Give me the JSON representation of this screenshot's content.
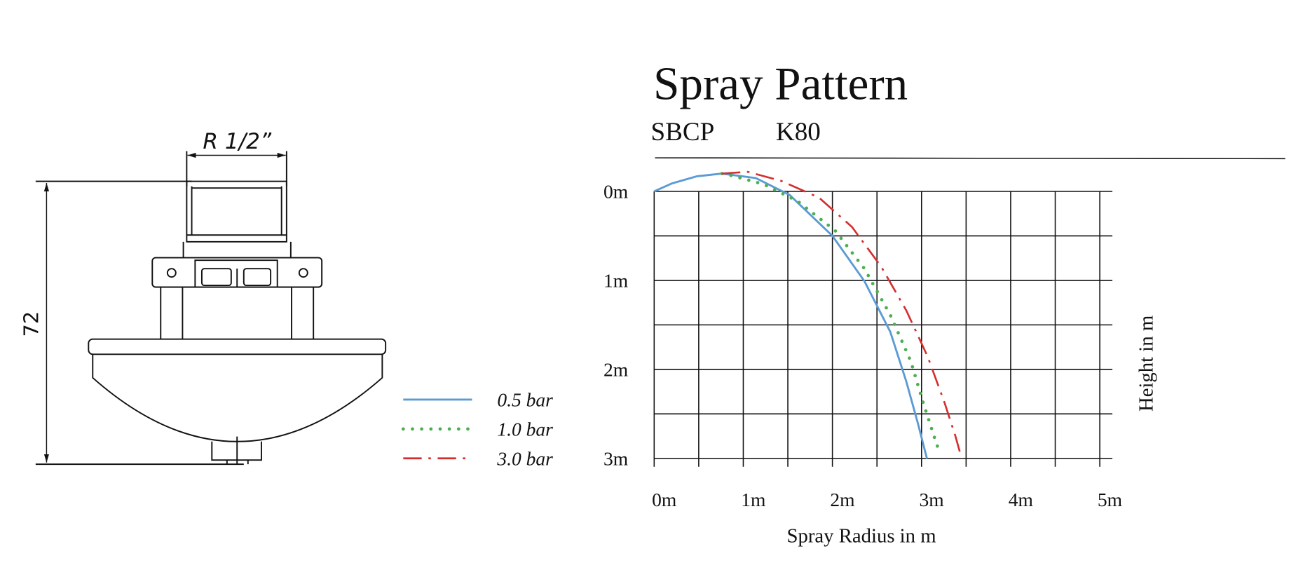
{
  "drawing": {
    "thread_label": "R 1/2”",
    "height_label": "72"
  },
  "chart_data": {
    "type": "line",
    "title": "Spray Pattern",
    "model": "SBCP",
    "k_factor": "K80",
    "xlabel": "Spray Radius in m",
    "ylabel": "Height in m",
    "xlim": [
      0,
      5
    ],
    "ylim": [
      0,
      3
    ],
    "y_inverted": true,
    "grid": true,
    "xticks": [
      {
        "value": 0,
        "label": "0m"
      },
      {
        "value": 1,
        "label": "1m"
      },
      {
        "value": 2,
        "label": "2m"
      },
      {
        "value": 3,
        "label": "3m"
      },
      {
        "value": 4,
        "label": "4m"
      },
      {
        "value": 5,
        "label": "5m"
      }
    ],
    "yticks": [
      {
        "value": 0,
        "label": "0m"
      },
      {
        "value": 1,
        "label": "1m"
      },
      {
        "value": 2,
        "label": "2m"
      },
      {
        "value": 3,
        "label": "3m"
      }
    ],
    "minor_xticks": [
      0.5,
      1.5,
      2.5,
      3.5,
      4.5
    ],
    "minor_yticks": [
      0.5,
      1.5,
      2.5
    ],
    "series": [
      {
        "name": "0.5 bar",
        "color": "#5b9bd5",
        "style": "solid",
        "x": [
          0,
          0.2,
          0.48,
          0.76,
          1.14,
          1.52,
          2.0,
          2.36,
          2.65,
          2.83,
          2.96,
          3.06
        ],
        "values": [
          0,
          -0.09,
          -0.17,
          -0.2,
          -0.15,
          0.04,
          0.5,
          1.01,
          1.58,
          2.14,
          2.61,
          3.0
        ]
      },
      {
        "name": "1.0 bar",
        "color": "#4caf50",
        "style": "dotted",
        "x": [
          0.76,
          0.9,
          1.23,
          1.61,
          2.03,
          2.36,
          2.65,
          2.88,
          3.02,
          3.14,
          3.21
        ],
        "values": [
          -0.2,
          -0.17,
          -0.08,
          0.11,
          0.44,
          0.87,
          1.39,
          1.91,
          2.38,
          2.75,
          2.96
        ]
      },
      {
        "name": "3.0 bar",
        "color": "#d32f2f",
        "style": "dashdot",
        "x": [
          0.76,
          1.05,
          1.42,
          1.85,
          2.22,
          2.55,
          2.83,
          3.07,
          3.26,
          3.38,
          3.45
        ],
        "values": [
          -0.2,
          -0.22,
          -0.12,
          0.07,
          0.4,
          0.85,
          1.34,
          1.86,
          2.38,
          2.75,
          3.0
        ]
      }
    ]
  }
}
